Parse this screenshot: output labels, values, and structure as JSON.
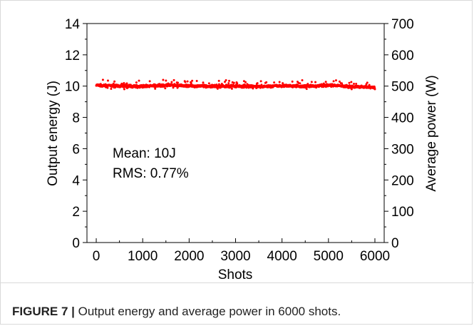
{
  "chart_data": {
    "type": "scatter",
    "xlabel": "Shots",
    "ylabel": "Output energy (J)",
    "y2label": "Average power (W)",
    "xlim": [
      -200,
      6200
    ],
    "ylim": [
      0,
      14
    ],
    "y2lim": [
      0,
      700
    ],
    "xticks": [
      "0",
      "1000",
      "2000",
      "3000",
      "4000",
      "5000",
      "6000"
    ],
    "yticks": [
      "0",
      "2",
      "4",
      "6",
      "8",
      "10",
      "12",
      "14"
    ],
    "y2ticks": [
      "0",
      "100",
      "200",
      "300",
      "400",
      "500",
      "600",
      "700"
    ],
    "annotations": [
      "Mean: 10J",
      "RMS: 0.77%"
    ],
    "marker_color": "#ff0000",
    "x_range": [
      0,
      6000
    ],
    "mean": 10,
    "series_trend": [
      {
        "x": 0,
        "y": 10.05
      },
      {
        "x": 500,
        "y": 10.0
      },
      {
        "x": 1000,
        "y": 9.98
      },
      {
        "x": 1500,
        "y": 10.05
      },
      {
        "x": 2000,
        "y": 10.02
      },
      {
        "x": 2500,
        "y": 9.98
      },
      {
        "x": 3000,
        "y": 10.0
      },
      {
        "x": 3500,
        "y": 9.97
      },
      {
        "x": 4000,
        "y": 10.03
      },
      {
        "x": 4500,
        "y": 9.98
      },
      {
        "x": 5000,
        "y": 10.05
      },
      {
        "x": 5500,
        "y": 9.97
      },
      {
        "x": 6000,
        "y": 9.92
      }
    ]
  },
  "caption": {
    "label": "FIGURE 7 |",
    "text": " Output energy and average power in 6000 shots."
  }
}
